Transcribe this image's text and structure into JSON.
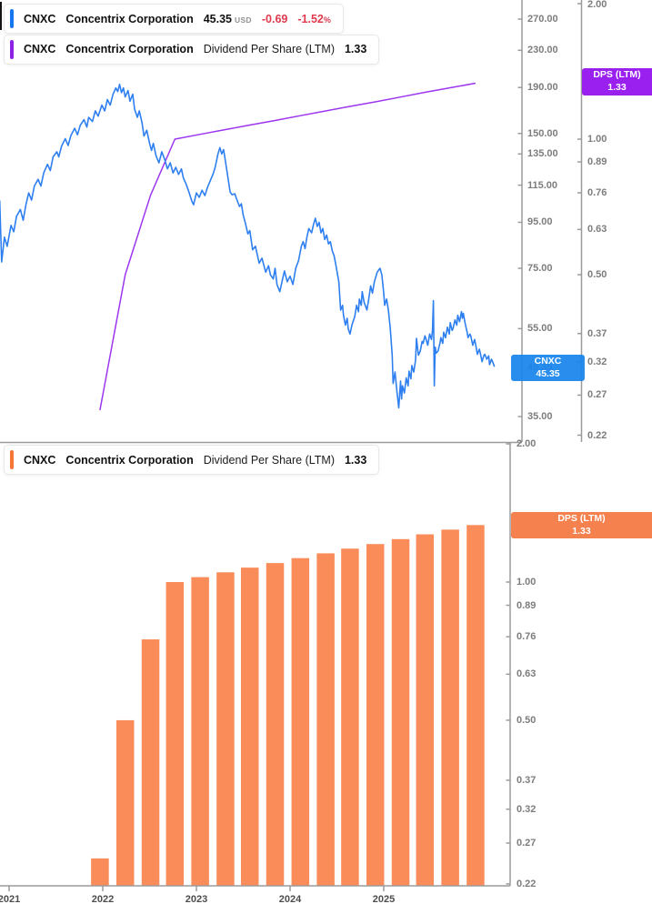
{
  "colors": {
    "price_line": "#2e7ff0",
    "price_strip": "#1677f0",
    "price_badge_bg": "rgba(24,132,236,0.93)",
    "dps_line": "#9d36ef",
    "dps_strip": "#8e22e3",
    "dps_badge_bg": "#9a20ef",
    "bar_fill": "#f98c58",
    "bar_strip": "#f57733",
    "bar_badge_bg": "#f5814e",
    "negative": "#df3a4d",
    "axis_line": "#9b9b9b",
    "axis_text": "#7d7d7d",
    "year_text": "#4d4d4d"
  },
  "legends": {
    "price": {
      "ticker": "CNXC",
      "company": "Concentrix Corporation",
      "price": "45.35",
      "currency": "USD",
      "change": "-0.69",
      "change_pct": "-1.52",
      "pct_sign": "%"
    },
    "dps_top": {
      "ticker": "CNXC",
      "company": "Concentrix Corporation",
      "metric": "Dividend Per Share (LTM)",
      "value": "1.33"
    },
    "dps_bottom": {
      "ticker": "CNXC",
      "company": "Concentrix Corporation",
      "metric": "Dividend Per Share (LTM)",
      "value": "1.33"
    }
  },
  "badges": {
    "price": {
      "line1": "CNXC",
      "line2": "45.35"
    },
    "dps_top": {
      "line1": "DPS (LTM)",
      "line2": "1.33"
    },
    "dps_bottom": {
      "line1": "DPS (LTM)",
      "line2": "1.33"
    }
  },
  "axes": {
    "price_ticks": [
      270,
      230,
      190,
      150,
      135,
      115,
      95,
      75,
      55,
      35
    ],
    "price_tick_labels": [
      "270.00",
      "230.00",
      "190.00",
      "150.00",
      "135.00",
      "115.00",
      "95.00",
      "75.00",
      "55.00",
      "35.00"
    ],
    "price_current_label": "45.35",
    "dps_ticks": [
      2.0,
      1.0,
      0.89,
      0.76,
      0.63,
      0.5,
      0.37,
      0.32,
      0.27,
      0.22
    ],
    "dps_tick_labels": [
      "2.00",
      "1.00",
      "0.89",
      "0.76",
      "0.63",
      "0.50",
      "0.37",
      "0.32",
      "0.27",
      "0.22"
    ],
    "year_ticks": [
      2021,
      2022,
      2023,
      2024,
      2025
    ],
    "year_tick_labels": [
      "2021",
      "2022",
      "2023",
      "2024",
      "2025"
    ]
  },
  "chart_data": [
    {
      "type": "line",
      "name": "CNXC share price (USD)",
      "y_scale": "log",
      "ylim": [
        33,
        290
      ],
      "x_range": [
        2020.9,
        2026.18
      ],
      "last_value": 45.35,
      "points": [
        [
          2020.9,
          106
        ],
        [
          2020.92,
          77.5
        ],
        [
          2020.95,
          88
        ],
        [
          2020.98,
          84
        ],
        [
          2021.02,
          93.5
        ],
        [
          2021.05,
          90.5
        ],
        [
          2021.08,
          98
        ],
        [
          2021.12,
          101.5
        ],
        [
          2021.15,
          96
        ],
        [
          2021.18,
          104
        ],
        [
          2021.21,
          110.5
        ],
        [
          2021.24,
          106.5
        ],
        [
          2021.27,
          114.5
        ],
        [
          2021.31,
          118.5
        ],
        [
          2021.34,
          114.5
        ],
        [
          2021.37,
          122.5
        ],
        [
          2021.41,
          128
        ],
        [
          2021.44,
          124
        ],
        [
          2021.47,
          133
        ],
        [
          2021.51,
          136.5
        ],
        [
          2021.53,
          133
        ],
        [
          2021.56,
          140.5
        ],
        [
          2021.6,
          146
        ],
        [
          2021.63,
          141
        ],
        [
          2021.66,
          148.5
        ],
        [
          2021.7,
          154
        ],
        [
          2021.73,
          149
        ],
        [
          2021.76,
          156.5
        ],
        [
          2021.8,
          161
        ],
        [
          2021.83,
          155
        ],
        [
          2021.85,
          163
        ],
        [
          2021.89,
          159.5
        ],
        [
          2021.92,
          168.5
        ],
        [
          2021.95,
          164
        ],
        [
          2021.99,
          173.5
        ],
        [
          2022.02,
          168.5
        ],
        [
          2022.05,
          178.5
        ],
        [
          2022.08,
          173.5
        ],
        [
          2022.11,
          183.5
        ],
        [
          2022.14,
          189.5
        ],
        [
          2022.16,
          186
        ],
        [
          2022.18,
          193
        ],
        [
          2022.2,
          185
        ],
        [
          2022.22,
          189.5
        ],
        [
          2022.24,
          181
        ],
        [
          2022.27,
          187
        ],
        [
          2022.29,
          177
        ],
        [
          2022.32,
          183.5
        ],
        [
          2022.34,
          170
        ],
        [
          2022.37,
          163
        ],
        [
          2022.39,
          168.5
        ],
        [
          2022.42,
          158
        ],
        [
          2022.44,
          148
        ],
        [
          2022.47,
          152.5
        ],
        [
          2022.5,
          142.5
        ],
        [
          2022.52,
          137.5
        ],
        [
          2022.54,
          142.5
        ],
        [
          2022.57,
          133.5
        ],
        [
          2022.6,
          129
        ],
        [
          2022.63,
          136.5
        ],
        [
          2022.66,
          131.5
        ],
        [
          2022.69,
          125
        ],
        [
          2022.72,
          129
        ],
        [
          2022.75,
          122.5
        ],
        [
          2022.78,
          126
        ],
        [
          2022.81,
          121.5
        ],
        [
          2022.84,
          125
        ],
        [
          2022.86,
          119.5
        ],
        [
          2022.89,
          115.5
        ],
        [
          2022.92,
          111
        ],
        [
          2022.95,
          106
        ],
        [
          2022.97,
          104
        ],
        [
          2023.0,
          110.5
        ],
        [
          2023.03,
          108
        ],
        [
          2023.06,
          112
        ],
        [
          2023.09,
          109
        ],
        [
          2023.12,
          114
        ],
        [
          2023.15,
          118
        ],
        [
          2023.18,
          122
        ],
        [
          2023.2,
          126
        ],
        [
          2023.23,
          135
        ],
        [
          2023.25,
          139.5
        ],
        [
          2023.27,
          135
        ],
        [
          2023.29,
          138
        ],
        [
          2023.31,
          130
        ],
        [
          2023.33,
          122
        ],
        [
          2023.36,
          111
        ],
        [
          2023.38,
          109.5
        ],
        [
          2023.41,
          110
        ],
        [
          2023.43,
          107
        ],
        [
          2023.46,
          103
        ],
        [
          2023.48,
          104.5
        ],
        [
          2023.5,
          98.5
        ],
        [
          2023.52,
          95
        ],
        [
          2023.55,
          89.5
        ],
        [
          2023.57,
          91
        ],
        [
          2023.6,
          82.5
        ],
        [
          2023.63,
          84
        ],
        [
          2023.67,
          77
        ],
        [
          2023.7,
          79
        ],
        [
          2023.74,
          73.5
        ],
        [
          2023.77,
          76
        ],
        [
          2023.79,
          72.5
        ],
        [
          2023.82,
          71
        ],
        [
          2023.84,
          75
        ],
        [
          2023.86,
          69
        ],
        [
          2023.89,
          66.5
        ],
        [
          2023.92,
          71
        ],
        [
          2023.94,
          74
        ],
        [
          2023.97,
          70
        ],
        [
          2024.0,
          72
        ],
        [
          2024.03,
          69
        ],
        [
          2024.06,
          75
        ],
        [
          2024.09,
          78
        ],
        [
          2024.12,
          84
        ],
        [
          2024.14,
          86
        ],
        [
          2024.16,
          83
        ],
        [
          2024.18,
          88
        ],
        [
          2024.2,
          92
        ],
        [
          2024.23,
          90
        ],
        [
          2024.25,
          94
        ],
        [
          2024.27,
          97
        ],
        [
          2024.29,
          93
        ],
        [
          2024.31,
          95
        ],
        [
          2024.33,
          90
        ],
        [
          2024.35,
          92
        ],
        [
          2024.37,
          87
        ],
        [
          2024.39,
          89
        ],
        [
          2024.41,
          85
        ],
        [
          2024.43,
          86
        ],
        [
          2024.45,
          82
        ],
        [
          2024.47,
          80
        ],
        [
          2024.49,
          76
        ],
        [
          2024.52,
          70
        ],
        [
          2024.53,
          65
        ],
        [
          2024.54,
          60.5
        ],
        [
          2024.56,
          62
        ],
        [
          2024.57,
          59
        ],
        [
          2024.59,
          56
        ],
        [
          2024.61,
          58
        ],
        [
          2024.62,
          55
        ],
        [
          2024.64,
          53.5
        ],
        [
          2024.66,
          56
        ],
        [
          2024.69,
          58.5
        ],
        [
          2024.71,
          62
        ],
        [
          2024.73,
          60
        ],
        [
          2024.74,
          64
        ],
        [
          2024.76,
          62
        ],
        [
          2024.77,
          66.5
        ],
        [
          2024.79,
          63
        ],
        [
          2024.82,
          60.5
        ],
        [
          2024.84,
          64
        ],
        [
          2024.86,
          68.5
        ],
        [
          2024.88,
          66
        ],
        [
          2024.9,
          70
        ],
        [
          2024.93,
          73.5
        ],
        [
          2024.96,
          75
        ],
        [
          2024.98,
          72.5
        ],
        [
          2025.0,
          66
        ],
        [
          2025.01,
          62
        ],
        [
          2025.03,
          64
        ],
        [
          2025.05,
          60.5
        ],
        [
          2025.07,
          55
        ],
        [
          2025.09,
          48
        ],
        [
          2025.1,
          41.5
        ],
        [
          2025.12,
          44
        ],
        [
          2025.14,
          40
        ],
        [
          2025.16,
          36.6
        ],
        [
          2025.18,
          42
        ],
        [
          2025.19,
          38.3
        ],
        [
          2025.2,
          41
        ],
        [
          2025.22,
          39.5
        ],
        [
          2025.24,
          42.7
        ],
        [
          2025.26,
          41
        ],
        [
          2025.27,
          44.2
        ],
        [
          2025.29,
          42.5
        ],
        [
          2025.3,
          45.5
        ],
        [
          2025.32,
          44
        ],
        [
          2025.34,
          46.8
        ],
        [
          2025.35,
          52.3
        ],
        [
          2025.37,
          48
        ],
        [
          2025.39,
          49
        ],
        [
          2025.41,
          51.5
        ],
        [
          2025.42,
          51
        ],
        [
          2025.44,
          53
        ],
        [
          2025.45,
          52.2
        ],
        [
          2025.47,
          50.5
        ],
        [
          2025.49,
          53.5
        ],
        [
          2025.51,
          52
        ],
        [
          2025.52,
          54.5
        ],
        [
          2025.53,
          63.5
        ],
        [
          2025.54,
          41
        ],
        [
          2025.55,
          50
        ],
        [
          2025.56,
          48.5
        ],
        [
          2025.58,
          49
        ],
        [
          2025.6,
          51
        ],
        [
          2025.61,
          52.5
        ],
        [
          2025.63,
          51
        ],
        [
          2025.64,
          54
        ],
        [
          2025.66,
          52.5
        ],
        [
          2025.68,
          55.4
        ],
        [
          2025.7,
          53.5
        ],
        [
          2025.71,
          56.7
        ],
        [
          2025.73,
          54.5
        ],
        [
          2025.74,
          55
        ],
        [
          2025.76,
          57.5
        ],
        [
          2025.78,
          56
        ],
        [
          2025.79,
          58.9
        ],
        [
          2025.81,
          57
        ],
        [
          2025.83,
          60
        ],
        [
          2025.84,
          58
        ],
        [
          2025.85,
          59.5
        ],
        [
          2025.87,
          56.4
        ],
        [
          2025.89,
          54
        ],
        [
          2025.9,
          52.5
        ],
        [
          2025.92,
          53.5
        ],
        [
          2025.93,
          52.9
        ],
        [
          2025.95,
          50.5
        ],
        [
          2025.97,
          52
        ],
        [
          2025.98,
          50.9
        ],
        [
          2026.0,
          48.2
        ],
        [
          2026.02,
          49.5
        ],
        [
          2026.03,
          48.6
        ],
        [
          2026.05,
          46.4
        ],
        [
          2026.07,
          48
        ],
        [
          2026.08,
          48.2
        ],
        [
          2026.1,
          47
        ],
        [
          2026.12,
          47.8
        ],
        [
          2026.13,
          45.7
        ],
        [
          2026.15,
          47
        ],
        [
          2026.17,
          46
        ],
        [
          2026.18,
          45.35
        ]
      ]
    },
    {
      "type": "line",
      "name": "Dividend Per Share (LTM)",
      "y_scale": "log",
      "last_value": 1.33,
      "points": [
        [
          2021.97,
          0.25
        ],
        [
          2022.24,
          0.5
        ],
        [
          2022.51,
          0.75
        ],
        [
          2022.77,
          1.0
        ],
        [
          2023.04,
          1.025
        ],
        [
          2023.31,
          1.05
        ],
        [
          2023.57,
          1.075
        ],
        [
          2023.84,
          1.1
        ],
        [
          2024.11,
          1.1275
        ],
        [
          2024.38,
          1.155
        ],
        [
          2024.64,
          1.1825
        ],
        [
          2024.91,
          1.21
        ],
        [
          2025.18,
          1.2403
        ],
        [
          2025.44,
          1.2705
        ],
        [
          2025.71,
          1.3008
        ],
        [
          2025.98,
          1.331
        ]
      ]
    },
    {
      "type": "bar",
      "name": "Dividend Per Share (LTM)",
      "y_scale": "log",
      "ylim": [
        0.215,
        2.05
      ],
      "x": [
        2021.97,
        2022.24,
        2022.51,
        2022.77,
        2023.04,
        2023.31,
        2023.57,
        2023.84,
        2024.11,
        2024.38,
        2024.64,
        2024.91,
        2025.18,
        2025.44,
        2025.71,
        2025.98
      ],
      "values": [
        0.25,
        0.5,
        0.75,
        1.0,
        1.025,
        1.05,
        1.075,
        1.1,
        1.1275,
        1.155,
        1.1825,
        1.21,
        1.2403,
        1.2705,
        1.3008,
        1.331
      ]
    }
  ]
}
